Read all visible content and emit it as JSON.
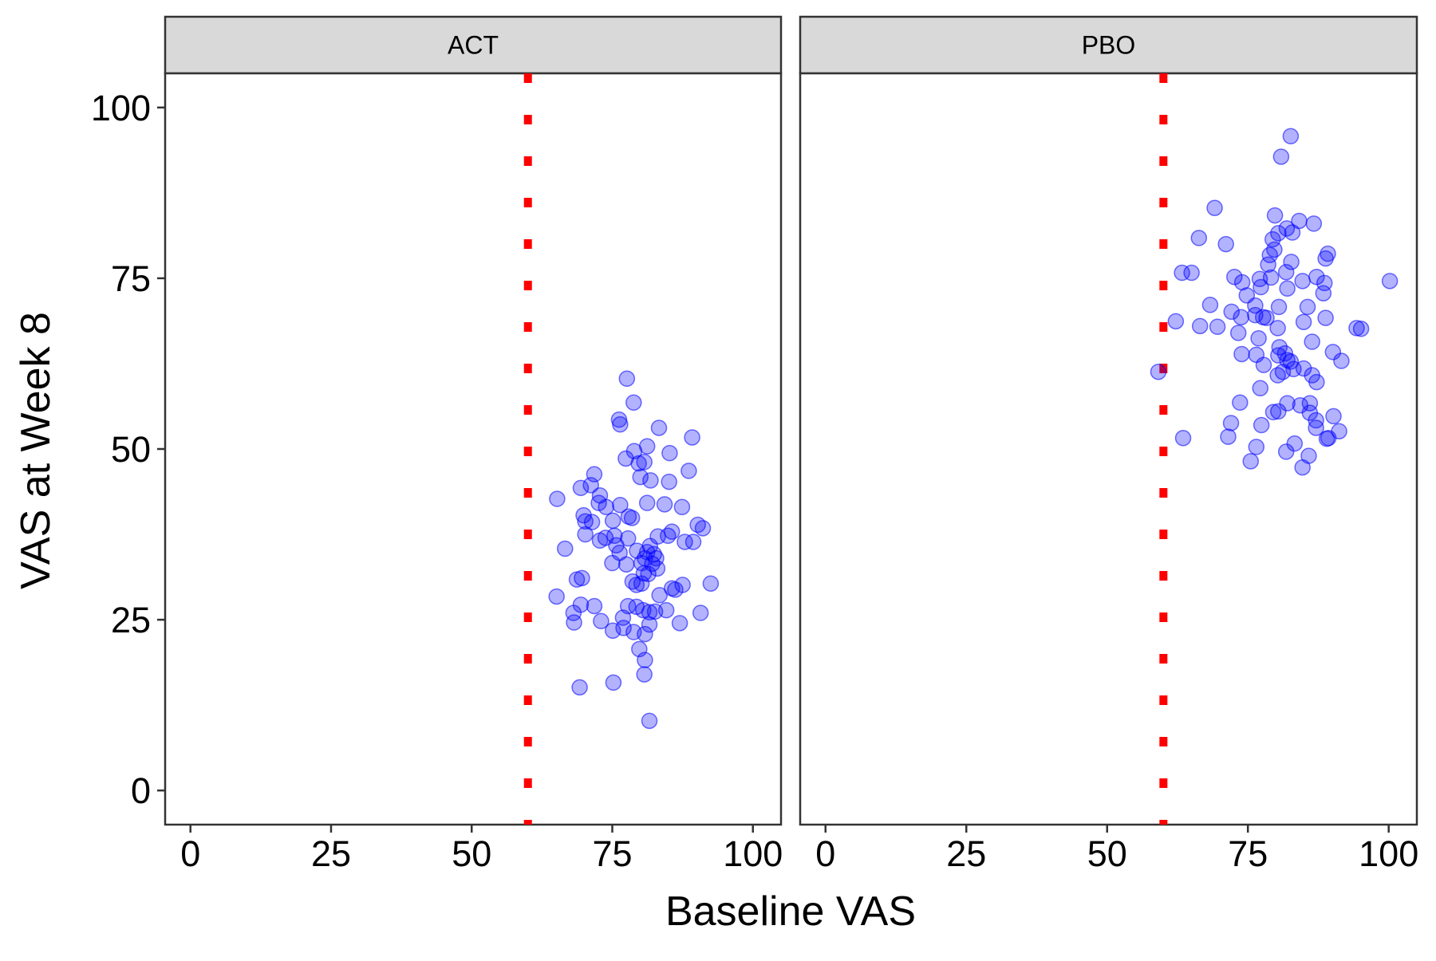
{
  "chart_data": {
    "type": "scatter",
    "xlabel": "Baseline VAS",
    "ylabel": "VAS at Week 8",
    "xlim": [
      -4.5,
      105
    ],
    "ylim": [
      -5,
      105
    ],
    "x_ticks": [
      0,
      25,
      50,
      75,
      100
    ],
    "y_ticks": [
      0,
      25,
      50,
      75,
      100
    ],
    "reference_line": {
      "axis": "x",
      "value": 60,
      "style": "dotted",
      "color": "#ff0000"
    },
    "grid": false,
    "point_color": "#0000ff",
    "point_alpha": 0.3,
    "panels": [
      {
        "label": "ACT",
        "points": [
          [
            77.6,
            60.3
          ],
          [
            78.8,
            56.8
          ],
          [
            76.2,
            54.3
          ],
          [
            83.3,
            53.1
          ],
          [
            76.4,
            53.6
          ],
          [
            89.2,
            51.7
          ],
          [
            81.2,
            50.4
          ],
          [
            78.9,
            49.7
          ],
          [
            85.2,
            49.4
          ],
          [
            77.4,
            48.6
          ],
          [
            79.7,
            47.9
          ],
          [
            80.7,
            48.1
          ],
          [
            88.6,
            46.8
          ],
          [
            71.8,
            46.3
          ],
          [
            80.0,
            45.9
          ],
          [
            81.8,
            45.4
          ],
          [
            85.1,
            45.2
          ],
          [
            69.4,
            44.3
          ],
          [
            71.2,
            44.7
          ],
          [
            72.8,
            43.2
          ],
          [
            65.2,
            42.7
          ],
          [
            72.6,
            42.1
          ],
          [
            81.2,
            42.1
          ],
          [
            84.3,
            41.9
          ],
          [
            73.9,
            41.5
          ],
          [
            76.4,
            41.8
          ],
          [
            87.4,
            41.5
          ],
          [
            69.9,
            40.3
          ],
          [
            70.2,
            39.4
          ],
          [
            75.1,
            39.5
          ],
          [
            71.4,
            39.3
          ],
          [
            78.5,
            39.9
          ],
          [
            77.9,
            40.1
          ],
          [
            90.2,
            38.9
          ],
          [
            91.1,
            38.4
          ],
          [
            70.2,
            37.5
          ],
          [
            72.8,
            36.6
          ],
          [
            73.8,
            37.0
          ],
          [
            75.4,
            37.3
          ],
          [
            85.6,
            37.9
          ],
          [
            84.9,
            37.3
          ],
          [
            83.1,
            37.2
          ],
          [
            87.9,
            36.4
          ],
          [
            77.8,
            36.9
          ],
          [
            89.4,
            36.4
          ],
          [
            66.6,
            35.4
          ],
          [
            75.7,
            35.9
          ],
          [
            79.4,
            35.1
          ],
          [
            81.7,
            35.8
          ],
          [
            76.3,
            34.8
          ],
          [
            81.2,
            34.9
          ],
          [
            82.4,
            34.6
          ],
          [
            80.8,
            34.0
          ],
          [
            82.8,
            34.0
          ],
          [
            82.1,
            33.2
          ],
          [
            75.0,
            33.3
          ],
          [
            80.2,
            33.3
          ],
          [
            83.0,
            32.5
          ],
          [
            77.5,
            33.1
          ],
          [
            81.4,
            31.7
          ],
          [
            69.6,
            31.1
          ],
          [
            68.7,
            30.9
          ],
          [
            79.3,
            30.1
          ],
          [
            80.2,
            30.3
          ],
          [
            78.6,
            30.6
          ],
          [
            80.6,
            31.8
          ],
          [
            86.2,
            29.4
          ],
          [
            87.5,
            30.1
          ],
          [
            92.5,
            30.3
          ],
          [
            85.6,
            29.6
          ],
          [
            83.4,
            28.6
          ],
          [
            65.1,
            28.4
          ],
          [
            69.4,
            27.2
          ],
          [
            71.8,
            27.0
          ],
          [
            77.8,
            27.0
          ],
          [
            79.3,
            26.9
          ],
          [
            80.5,
            26.4
          ],
          [
            81.6,
            26.1
          ],
          [
            82.6,
            26.2
          ],
          [
            84.6,
            26.4
          ],
          [
            90.7,
            26.0
          ],
          [
            68.1,
            26.0
          ],
          [
            73.0,
            24.8
          ],
          [
            76.9,
            25.3
          ],
          [
            68.2,
            24.6
          ],
          [
            77.0,
            23.8
          ],
          [
            78.8,
            23.2
          ],
          [
            81.6,
            24.3
          ],
          [
            75.1,
            23.4
          ],
          [
            87.0,
            24.5
          ],
          [
            80.8,
            22.9
          ],
          [
            79.8,
            20.7
          ],
          [
            80.8,
            19.1
          ],
          [
            80.7,
            17.0
          ],
          [
            69.2,
            15.1
          ],
          [
            75.2,
            15.8
          ],
          [
            81.6,
            10.2
          ]
        ]
      },
      {
        "label": "PBO",
        "points": [
          [
            82.6,
            95.8
          ],
          [
            80.9,
            92.8
          ],
          [
            69.1,
            85.3
          ],
          [
            79.8,
            84.2
          ],
          [
            86.7,
            83.0
          ],
          [
            84.1,
            83.4
          ],
          [
            81.9,
            82.3
          ],
          [
            80.4,
            81.6
          ],
          [
            82.9,
            81.7
          ],
          [
            79.4,
            80.7
          ],
          [
            66.3,
            80.9
          ],
          [
            71.1,
            80.0
          ],
          [
            79.7,
            79.2
          ],
          [
            78.9,
            78.4
          ],
          [
            89.2,
            78.6
          ],
          [
            88.8,
            77.9
          ],
          [
            78.6,
            77.0
          ],
          [
            82.7,
            77.4
          ],
          [
            63.3,
            75.8
          ],
          [
            65.0,
            75.8
          ],
          [
            72.6,
            75.2
          ],
          [
            79.1,
            75.1
          ],
          [
            81.8,
            75.9
          ],
          [
            84.7,
            74.6
          ],
          [
            87.2,
            75.2
          ],
          [
            77.1,
            74.9
          ],
          [
            74.0,
            74.4
          ],
          [
            88.6,
            74.3
          ],
          [
            100.2,
            74.6
          ],
          [
            77.3,
            73.7
          ],
          [
            82.0,
            73.5
          ],
          [
            88.4,
            72.8
          ],
          [
            74.8,
            72.5
          ],
          [
            76.3,
            71.0
          ],
          [
            68.3,
            71.1
          ],
          [
            80.5,
            70.8
          ],
          [
            85.6,
            70.8
          ],
          [
            72.1,
            70.1
          ],
          [
            73.8,
            69.3
          ],
          [
            77.7,
            69.3
          ],
          [
            76.3,
            69.6
          ],
          [
            78.3,
            69.2
          ],
          [
            62.2,
            68.7
          ],
          [
            66.5,
            68.0
          ],
          [
            69.6,
            67.9
          ],
          [
            80.3,
            67.7
          ],
          [
            84.9,
            68.6
          ],
          [
            88.8,
            69.2
          ],
          [
            94.3,
            67.7
          ],
          [
            95.1,
            67.6
          ],
          [
            73.3,
            67.0
          ],
          [
            76.9,
            66.2
          ],
          [
            86.4,
            65.7
          ],
          [
            80.6,
            64.9
          ],
          [
            73.9,
            63.9
          ],
          [
            76.5,
            63.8
          ],
          [
            80.4,
            63.7
          ],
          [
            81.6,
            64.0
          ],
          [
            82.6,
            62.8
          ],
          [
            90.1,
            64.2
          ],
          [
            82.0,
            63.0
          ],
          [
            84.9,
            61.8
          ],
          [
            91.6,
            62.9
          ],
          [
            77.8,
            62.3
          ],
          [
            81.2,
            61.3
          ],
          [
            83.1,
            61.7
          ],
          [
            59.1,
            61.3
          ],
          [
            80.3,
            60.8
          ],
          [
            86.4,
            60.8
          ],
          [
            87.2,
            59.8
          ],
          [
            77.2,
            58.9
          ],
          [
            82.0,
            56.7
          ],
          [
            73.6,
            56.8
          ],
          [
            84.3,
            56.4
          ],
          [
            86.0,
            56.7
          ],
          [
            79.5,
            55.4
          ],
          [
            80.4,
            55.5
          ],
          [
            86.0,
            55.3
          ],
          [
            90.2,
            54.8
          ],
          [
            87.1,
            54.2
          ],
          [
            72.0,
            53.8
          ],
          [
            77.4,
            53.5
          ],
          [
            87.1,
            53.1
          ],
          [
            91.2,
            52.6
          ],
          [
            63.5,
            51.6
          ],
          [
            71.5,
            51.8
          ],
          [
            89.3,
            51.6
          ],
          [
            89.0,
            51.5
          ],
          [
            83.3,
            50.8
          ],
          [
            76.5,
            50.3
          ],
          [
            81.8,
            49.6
          ],
          [
            85.8,
            49.0
          ],
          [
            75.5,
            48.2
          ],
          [
            84.7,
            47.3
          ]
        ]
      }
    ]
  }
}
